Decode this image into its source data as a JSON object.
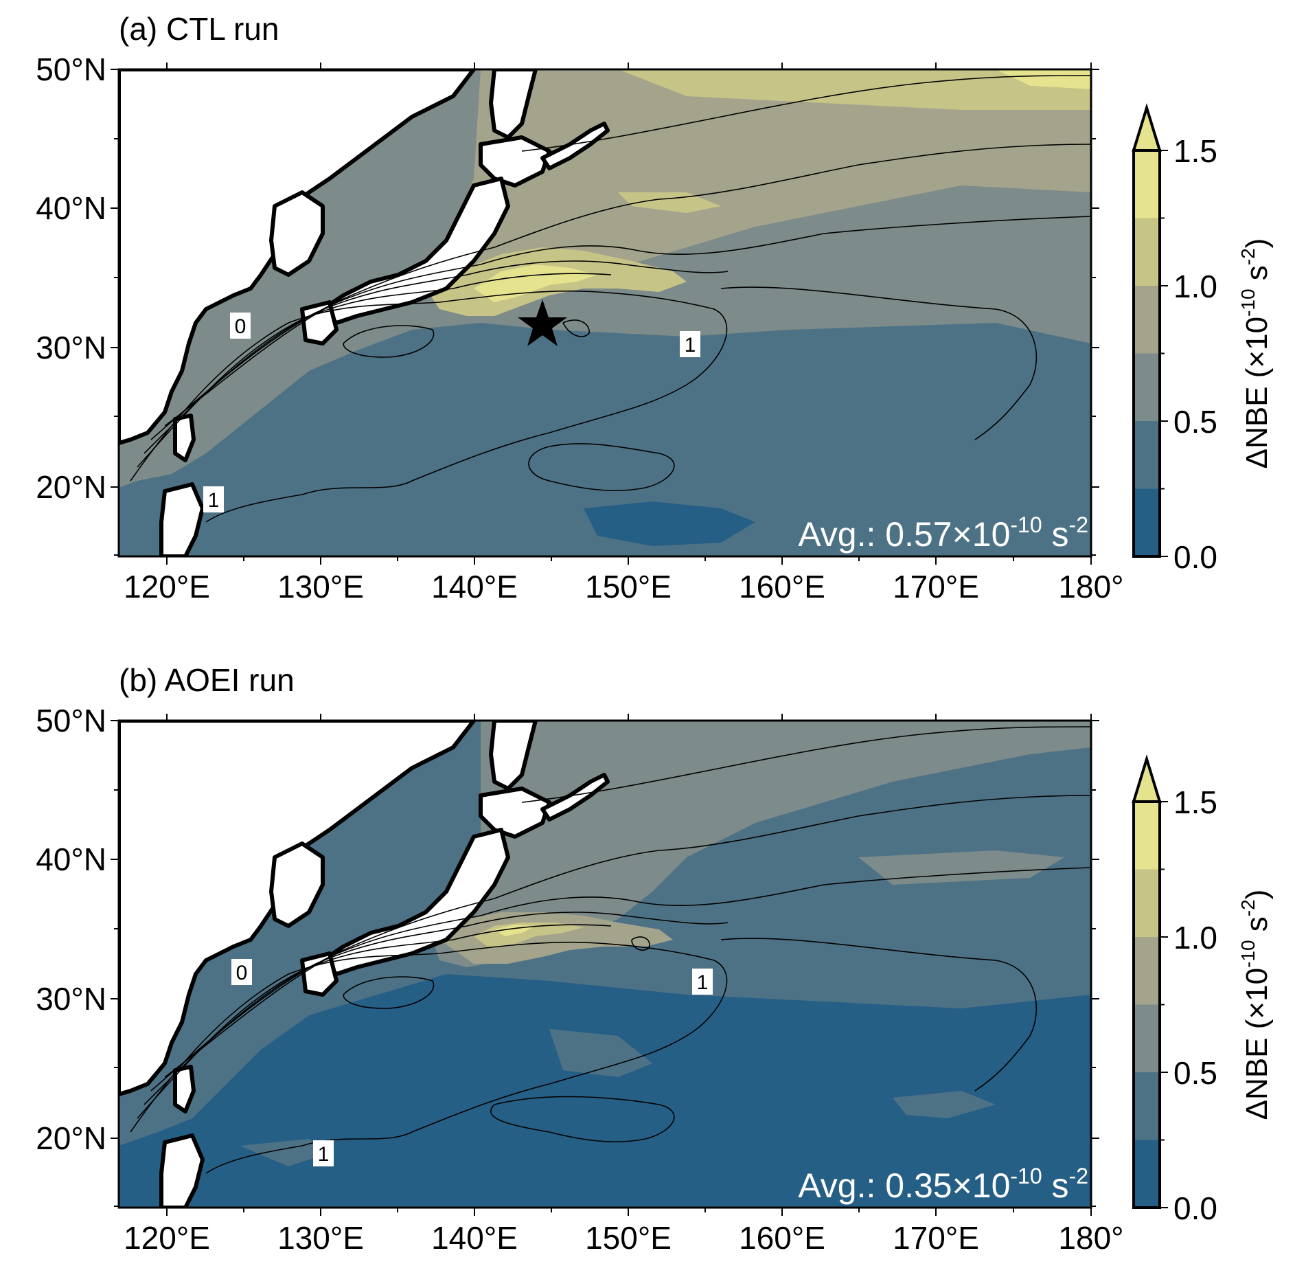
{
  "figure": {
    "panels": [
      {
        "id": "a",
        "title": "(a) CTL run",
        "avg_prefix": "Avg.: 0.57×10",
        "avg_exp": "-10",
        "avg_unit": " s",
        "avg_unit_exp": "-2",
        "contour_labels": [
          "0",
          "1",
          "1"
        ],
        "has_star": true
      },
      {
        "id": "b",
        "title": "(b) AOEI run",
        "avg_prefix": "Avg.: 0.35×10",
        "avg_exp": "-10",
        "avg_unit": " s",
        "avg_unit_exp": "-2",
        "contour_labels": [
          "0",
          "1",
          "1"
        ],
        "has_star": false
      }
    ],
    "lon_ticks": [
      "120°E",
      "130°E",
      "140°E",
      "150°E",
      "160°E",
      "170°E",
      "180°"
    ],
    "lat_ticks": [
      "50°N",
      "40°N",
      "30°N",
      "20°N"
    ],
    "colorbar": {
      "ticks": [
        "1.5",
        "1.0",
        "0.5",
        "0.0"
      ],
      "label_main": "ΔNBE (×10",
      "label_exp": "-10",
      "label_unit": " s",
      "label_unit_exp": "-2",
      "label_close": ")",
      "colors": [
        "#265f86",
        "#4e7285",
        "#7d8b8a",
        "#a4a48c",
        "#c7c487",
        "#e6e38e"
      ]
    },
    "colors": {
      "land": "#ffffff",
      "low": "#265f86",
      "midlow": "#4e7285",
      "mid": "#7d8b8a",
      "midhigh": "#a4a48c",
      "high": "#c7c487",
      "top": "#e6e38e"
    }
  }
}
